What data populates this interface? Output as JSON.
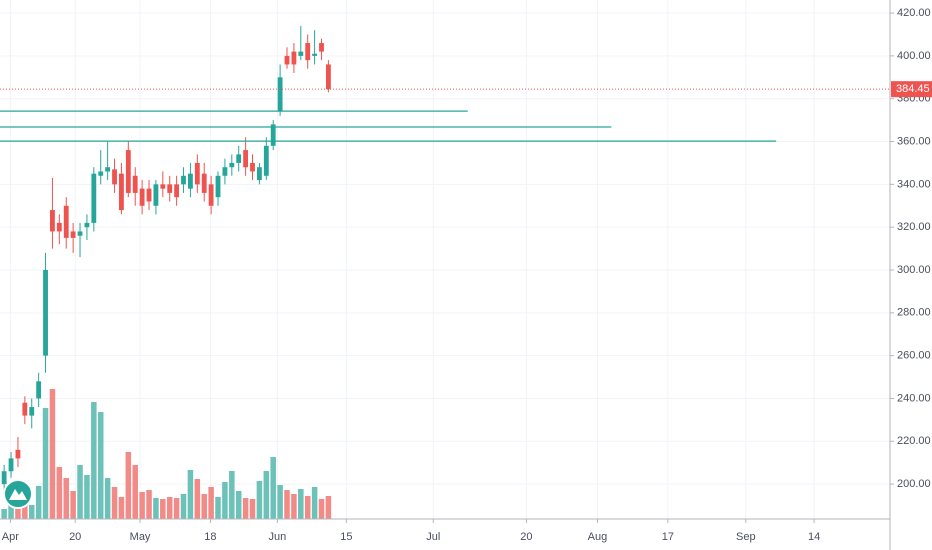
{
  "chart_data": {
    "type": "candlestick",
    "open": [
      200,
      206,
      216,
      238,
      232,
      240,
      260,
      328,
      322,
      330,
      318,
      316,
      320,
      322,
      344,
      346,
      347,
      345,
      356,
      344,
      338,
      338,
      330,
      340,
      340,
      340,
      340,
      338,
      350,
      345,
      340,
      334,
      344,
      348,
      350,
      356,
      350,
      342,
      344,
      358,
      374,
      400,
      402,
      400,
      406,
      400,
      406,
      396
    ],
    "high": [
      209,
      215,
      222,
      241,
      240,
      252,
      308,
      343,
      326,
      334,
      322,
      322,
      326,
      348,
      356,
      360,
      352,
      350,
      360,
      348,
      342,
      342,
      342,
      346,
      344,
      344,
      348,
      350,
      354,
      350,
      344,
      346,
      352,
      354,
      358,
      362,
      354,
      350,
      362,
      370,
      396,
      404,
      406,
      414,
      410,
      412,
      408,
      398
    ],
    "low": [
      197,
      203,
      208,
      228,
      226,
      236,
      252,
      310,
      312,
      310,
      308,
      306,
      314,
      318,
      340,
      342,
      336,
      326,
      334,
      330,
      326,
      328,
      326,
      334,
      332,
      330,
      336,
      334,
      336,
      332,
      326,
      330,
      340,
      344,
      346,
      344,
      342,
      340,
      342,
      356,
      372,
      394,
      392,
      398,
      394,
      396,
      398,
      383
    ],
    "close": [
      206,
      212,
      212,
      232,
      236,
      248,
      300,
      318,
      318,
      315,
      315,
      318,
      322,
      345,
      346,
      348,
      340,
      328,
      336,
      336,
      330,
      332,
      340,
      338,
      336,
      334,
      344,
      345,
      340,
      336,
      330,
      344,
      348,
      350,
      354,
      348,
      346,
      348,
      358,
      368,
      390,
      396,
      396,
      402,
      398,
      401,
      402,
      384.45
    ],
    "volume": [
      10,
      18,
      20,
      22,
      14,
      33,
      111,
      130,
      52,
      41,
      28,
      54,
      44,
      117,
      107,
      41,
      32,
      22,
      67,
      54,
      27,
      29,
      21,
      20,
      22,
      21,
      25,
      49,
      40,
      25,
      32,
      22,
      37,
      48,
      28,
      21,
      20,
      38,
      48,
      62,
      34,
      29,
      25,
      30,
      23,
      32,
      20,
      23
    ],
    "up_color": "#26a69a",
    "down_color": "#ef5350",
    "up_volume_color": "#6cc2b8",
    "down_volume_color": "#f28b88",
    "xlim": [
      -0.6,
      128.4
    ],
    "xticks": [
      {
        "value": 0.9,
        "label": "Apr"
      },
      {
        "value": 10.3,
        "label": "20"
      },
      {
        "value": 19.7,
        "label": "May"
      },
      {
        "value": 29.9,
        "label": "18"
      },
      {
        "value": 39.6,
        "label": "Jun"
      },
      {
        "value": 49.6,
        "label": "15"
      },
      {
        "value": 62.2,
        "label": "Jul"
      },
      {
        "value": 75.7,
        "label": "20"
      },
      {
        "value": 86,
        "label": "Aug"
      },
      {
        "value": 96.2,
        "label": "17"
      },
      {
        "value": 107.5,
        "label": "Sep"
      },
      {
        "value": 117.4,
        "label": "14"
      }
    ],
    "ylim": [
      183.7,
      426.1
    ],
    "yticks": [
      {
        "value": 200,
        "label": "200.00"
      },
      {
        "value": 220,
        "label": "220.00"
      },
      {
        "value": 240,
        "label": "240.00"
      },
      {
        "value": 260,
        "label": "260.00"
      },
      {
        "value": 280,
        "label": "280.00"
      },
      {
        "value": 300,
        "label": "300.00"
      },
      {
        "value": 320,
        "label": "320.00"
      },
      {
        "value": 340,
        "label": "340.00"
      },
      {
        "value": 360,
        "label": "360.00"
      },
      {
        "value": 380,
        "label": "380.00"
      },
      {
        "value": 400,
        "label": "400.00"
      },
      {
        "value": 420,
        "label": "420.00"
      }
    ],
    "horizontal_lines": [
      {
        "value": 374.2,
        "end": 67.2,
        "color": "#26a69a"
      },
      {
        "value": 366.8,
        "end": 88,
        "color": "#26a69a"
      },
      {
        "value": 360.2,
        "end": 111.9,
        "color": "#26a69a"
      }
    ],
    "grid": true
  }
}
